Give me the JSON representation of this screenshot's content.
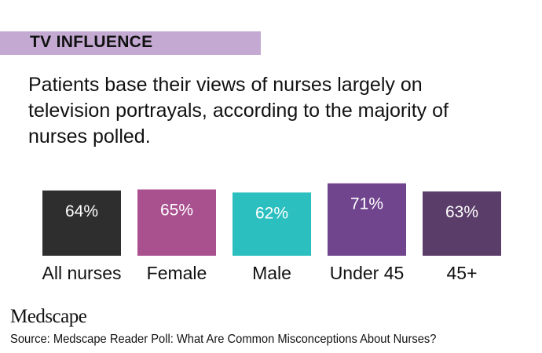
{
  "header": {
    "title": "TV INFLUENCE"
  },
  "intro_text": "Patients base their views of nurses largely on television portrayals, according to the majority of nurses polled.",
  "chart_data": {
    "type": "bar",
    "categories": [
      "All nurses",
      "Female",
      "Male",
      "Under 45",
      "45+"
    ],
    "values": [
      64,
      65,
      62,
      71,
      63
    ],
    "value_labels": [
      "64%",
      "65%",
      "62%",
      "71%",
      "63%"
    ],
    "colors": [
      "#2f2e2f",
      "#a9508f",
      "#2cbfbf",
      "#70458e",
      "#5a3d69"
    ],
    "unit": "%",
    "title": "",
    "xlabel": "",
    "ylabel": ""
  },
  "footer": {
    "logo": "Medscape",
    "source": "Source: Medscape Reader Poll: What Are Common Misconceptions About Nurses?"
  }
}
